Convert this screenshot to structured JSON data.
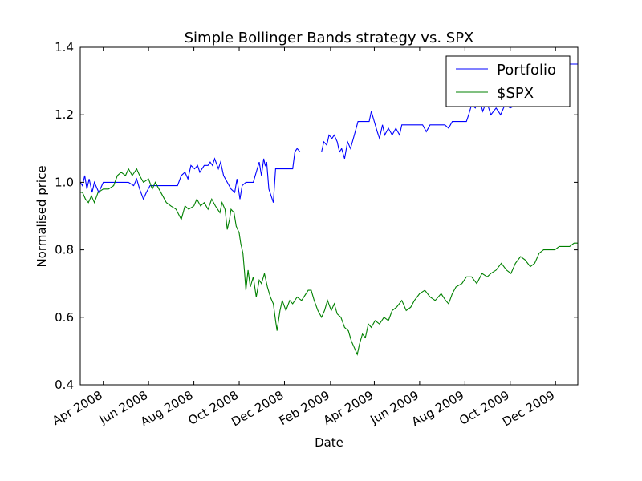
{
  "chart_data": {
    "type": "line",
    "title": "Simple Bollinger Bands strategy vs. SPX",
    "xlabel": "Date",
    "ylabel": "Normalised price",
    "xlim": [
      "2008-03-01",
      "2009-12-31"
    ],
    "ylim": [
      0.4,
      1.4
    ],
    "y_ticks": [
      0.4,
      0.6,
      0.8,
      1.0,
      1.2,
      1.4
    ],
    "y_tick_labels": [
      "0.4",
      "0.6",
      "0.8",
      "1.0",
      "1.2",
      "1.4"
    ],
    "x_ticks": [
      "2008-04-01",
      "2008-06-01",
      "2008-08-01",
      "2008-10-01",
      "2008-12-01",
      "2009-02-01",
      "2009-04-01",
      "2009-06-01",
      "2009-08-01",
      "2009-10-01",
      "2009-12-01"
    ],
    "x_tick_labels": [
      "Apr 2008",
      "Jun 2008",
      "Aug 2008",
      "Oct 2008",
      "Dec 2008",
      "Feb 2009",
      "Apr 2009",
      "Jun 2009",
      "Aug 2009",
      "Oct 2009",
      "Dec 2009"
    ],
    "grid": false,
    "legend_position": "top-right",
    "series": [
      {
        "name": "Portfolio",
        "color": "#0000ff",
        "points": [
          [
            "2008-03-01",
            1.0
          ],
          [
            "2008-03-04",
            0.99
          ],
          [
            "2008-03-07",
            1.02
          ],
          [
            "2008-03-10",
            0.98
          ],
          [
            "2008-03-13",
            1.01
          ],
          [
            "2008-03-17",
            0.97
          ],
          [
            "2008-03-20",
            1.0
          ],
          [
            "2008-03-26",
            0.97
          ],
          [
            "2008-04-01",
            1.0
          ],
          [
            "2008-04-20",
            1.0
          ],
          [
            "2008-05-05",
            1.0
          ],
          [
            "2008-05-12",
            0.99
          ],
          [
            "2008-05-16",
            1.01
          ],
          [
            "2008-05-20",
            0.98
          ],
          [
            "2008-05-25",
            0.95
          ],
          [
            "2008-05-29",
            0.97
          ],
          [
            "2008-06-03",
            0.99
          ],
          [
            "2008-06-15",
            0.99
          ],
          [
            "2008-07-10",
            0.99
          ],
          [
            "2008-07-15",
            1.02
          ],
          [
            "2008-07-20",
            1.03
          ],
          [
            "2008-07-24",
            1.01
          ],
          [
            "2008-07-28",
            1.05
          ],
          [
            "2008-08-02",
            1.04
          ],
          [
            "2008-08-06",
            1.05
          ],
          [
            "2008-08-09",
            1.03
          ],
          [
            "2008-08-15",
            1.05
          ],
          [
            "2008-08-20",
            1.05
          ],
          [
            "2008-08-23",
            1.06
          ],
          [
            "2008-08-26",
            1.05
          ],
          [
            "2008-08-29",
            1.07
          ],
          [
            "2008-09-03",
            1.04
          ],
          [
            "2008-09-06",
            1.06
          ],
          [
            "2008-09-10",
            1.02
          ],
          [
            "2008-09-15",
            1.0
          ],
          [
            "2008-09-20",
            0.98
          ],
          [
            "2008-09-25",
            0.97
          ],
          [
            "2008-09-28",
            1.01
          ],
          [
            "2008-10-02",
            0.95
          ],
          [
            "2008-10-05",
            0.99
          ],
          [
            "2008-10-10",
            1.0
          ],
          [
            "2008-10-20",
            1.0
          ],
          [
            "2008-10-28",
            1.06
          ],
          [
            "2008-10-31",
            1.02
          ],
          [
            "2008-11-03",
            1.07
          ],
          [
            "2008-11-05",
            1.05
          ],
          [
            "2008-11-07",
            1.06
          ],
          [
            "2008-11-10",
            0.98
          ],
          [
            "2008-11-13",
            0.96
          ],
          [
            "2008-11-16",
            0.94
          ],
          [
            "2008-11-19",
            1.04
          ],
          [
            "2008-12-05",
            1.04
          ],
          [
            "2008-12-12",
            1.04
          ],
          [
            "2008-12-15",
            1.09
          ],
          [
            "2008-12-18",
            1.1
          ],
          [
            "2008-12-22",
            1.09
          ],
          [
            "2009-01-10",
            1.09
          ],
          [
            "2009-01-20",
            1.09
          ],
          [
            "2009-01-23",
            1.12
          ],
          [
            "2009-01-27",
            1.11
          ],
          [
            "2009-01-30",
            1.14
          ],
          [
            "2009-02-03",
            1.13
          ],
          [
            "2009-02-06",
            1.14
          ],
          [
            "2009-02-10",
            1.12
          ],
          [
            "2009-02-13",
            1.09
          ],
          [
            "2009-02-16",
            1.1
          ],
          [
            "2009-02-20",
            1.07
          ],
          [
            "2009-02-24",
            1.12
          ],
          [
            "2009-02-28",
            1.1
          ],
          [
            "2009-03-05",
            1.14
          ],
          [
            "2009-03-10",
            1.18
          ],
          [
            "2009-03-20",
            1.18
          ],
          [
            "2009-03-25",
            1.18
          ],
          [
            "2009-03-28",
            1.21
          ],
          [
            "2009-04-01",
            1.18
          ],
          [
            "2009-04-05",
            1.15
          ],
          [
            "2009-04-08",
            1.13
          ],
          [
            "2009-04-12",
            1.17
          ],
          [
            "2009-04-15",
            1.14
          ],
          [
            "2009-04-20",
            1.16
          ],
          [
            "2009-04-25",
            1.14
          ],
          [
            "2009-04-30",
            1.16
          ],
          [
            "2009-05-05",
            1.14
          ],
          [
            "2009-05-08",
            1.17
          ],
          [
            "2009-05-25",
            1.17
          ],
          [
            "2009-06-05",
            1.17
          ],
          [
            "2009-06-10",
            1.15
          ],
          [
            "2009-06-15",
            1.17
          ],
          [
            "2009-07-05",
            1.17
          ],
          [
            "2009-07-10",
            1.16
          ],
          [
            "2009-07-15",
            1.18
          ],
          [
            "2009-07-28",
            1.18
          ],
          [
            "2009-08-03",
            1.18
          ],
          [
            "2009-08-06",
            1.2
          ],
          [
            "2009-08-10",
            1.23
          ],
          [
            "2009-08-15",
            1.22
          ],
          [
            "2009-08-20",
            1.25
          ],
          [
            "2009-08-25",
            1.21
          ],
          [
            "2009-08-30",
            1.24
          ],
          [
            "2009-09-05",
            1.2
          ],
          [
            "2009-09-12",
            1.22
          ],
          [
            "2009-09-18",
            1.2
          ],
          [
            "2009-09-24",
            1.23
          ],
          [
            "2009-10-01",
            1.22
          ],
          [
            "2009-10-10",
            1.23
          ],
          [
            "2009-10-20",
            1.28
          ],
          [
            "2009-11-01",
            1.3
          ],
          [
            "2009-11-15",
            1.32
          ],
          [
            "2009-12-01",
            1.35
          ],
          [
            "2009-12-31",
            1.35
          ]
        ]
      },
      {
        "name": "$SPX",
        "color": "#008000",
        "points": [
          [
            "2008-03-01",
            0.97
          ],
          [
            "2008-03-04",
            0.97
          ],
          [
            "2008-03-08",
            0.95
          ],
          [
            "2008-03-12",
            0.94
          ],
          [
            "2008-03-16",
            0.96
          ],
          [
            "2008-03-20",
            0.94
          ],
          [
            "2008-03-25",
            0.97
          ],
          [
            "2008-04-01",
            0.98
          ],
          [
            "2008-04-08",
            0.98
          ],
          [
            "2008-04-15",
            0.99
          ],
          [
            "2008-04-20",
            1.02
          ],
          [
            "2008-04-25",
            1.03
          ],
          [
            "2008-05-01",
            1.02
          ],
          [
            "2008-05-05",
            1.04
          ],
          [
            "2008-05-10",
            1.02
          ],
          [
            "2008-05-16",
            1.04
          ],
          [
            "2008-05-20",
            1.02
          ],
          [
            "2008-05-25",
            1.0
          ],
          [
            "2008-06-01",
            1.01
          ],
          [
            "2008-06-06",
            0.98
          ],
          [
            "2008-06-10",
            1.0
          ],
          [
            "2008-06-15",
            0.98
          ],
          [
            "2008-06-20",
            0.96
          ],
          [
            "2008-06-25",
            0.94
          ],
          [
            "2008-07-01",
            0.93
          ],
          [
            "2008-07-08",
            0.92
          ],
          [
            "2008-07-15",
            0.89
          ],
          [
            "2008-07-20",
            0.93
          ],
          [
            "2008-07-25",
            0.92
          ],
          [
            "2008-08-01",
            0.93
          ],
          [
            "2008-08-05",
            0.95
          ],
          [
            "2008-08-10",
            0.93
          ],
          [
            "2008-08-15",
            0.94
          ],
          [
            "2008-08-20",
            0.92
          ],
          [
            "2008-08-25",
            0.95
          ],
          [
            "2008-08-30",
            0.93
          ],
          [
            "2008-09-05",
            0.91
          ],
          [
            "2008-09-08",
            0.94
          ],
          [
            "2008-09-12",
            0.92
          ],
          [
            "2008-09-15",
            0.86
          ],
          [
            "2008-09-18",
            0.89
          ],
          [
            "2008-09-20",
            0.92
          ],
          [
            "2008-09-24",
            0.91
          ],
          [
            "2008-09-27",
            0.87
          ],
          [
            "2008-10-01",
            0.85
          ],
          [
            "2008-10-03",
            0.82
          ],
          [
            "2008-10-06",
            0.79
          ],
          [
            "2008-10-08",
            0.74
          ],
          [
            "2008-10-10",
            0.68
          ],
          [
            "2008-10-13",
            0.74
          ],
          [
            "2008-10-16",
            0.69
          ],
          [
            "2008-10-20",
            0.72
          ],
          [
            "2008-10-24",
            0.66
          ],
          [
            "2008-10-28",
            0.71
          ],
          [
            "2008-10-31",
            0.7
          ],
          [
            "2008-11-04",
            0.73
          ],
          [
            "2008-11-08",
            0.69
          ],
          [
            "2008-11-12",
            0.66
          ],
          [
            "2008-11-16",
            0.64
          ],
          [
            "2008-11-19",
            0.59
          ],
          [
            "2008-11-21",
            0.56
          ],
          [
            "2008-11-25",
            0.62
          ],
          [
            "2008-11-28",
            0.65
          ],
          [
            "2008-12-03",
            0.62
          ],
          [
            "2008-12-08",
            0.65
          ],
          [
            "2008-12-12",
            0.64
          ],
          [
            "2008-12-18",
            0.66
          ],
          [
            "2008-12-24",
            0.65
          ],
          [
            "2009-01-02",
            0.68
          ],
          [
            "2009-01-06",
            0.68
          ],
          [
            "2009-01-10",
            0.65
          ],
          [
            "2009-01-15",
            0.62
          ],
          [
            "2009-01-20",
            0.6
          ],
          [
            "2009-01-24",
            0.62
          ],
          [
            "2009-01-28",
            0.65
          ],
          [
            "2009-02-02",
            0.62
          ],
          [
            "2009-02-06",
            0.64
          ],
          [
            "2009-02-10",
            0.61
          ],
          [
            "2009-02-15",
            0.6
          ],
          [
            "2009-02-20",
            0.57
          ],
          [
            "2009-02-25",
            0.56
          ],
          [
            "2009-03-01",
            0.53
          ],
          [
            "2009-03-05",
            0.51
          ],
          [
            "2009-03-09",
            0.49
          ],
          [
            "2009-03-12",
            0.52
          ],
          [
            "2009-03-16",
            0.55
          ],
          [
            "2009-03-20",
            0.54
          ],
          [
            "2009-03-24",
            0.58
          ],
          [
            "2009-03-28",
            0.57
          ],
          [
            "2009-04-02",
            0.59
          ],
          [
            "2009-04-08",
            0.58
          ],
          [
            "2009-04-14",
            0.6
          ],
          [
            "2009-04-20",
            0.59
          ],
          [
            "2009-04-25",
            0.62
          ],
          [
            "2009-05-01",
            0.63
          ],
          [
            "2009-05-08",
            0.65
          ],
          [
            "2009-05-14",
            0.62
          ],
          [
            "2009-05-20",
            0.63
          ],
          [
            "2009-05-25",
            0.65
          ],
          [
            "2009-06-01",
            0.67
          ],
          [
            "2009-06-08",
            0.68
          ],
          [
            "2009-06-15",
            0.66
          ],
          [
            "2009-06-22",
            0.65
          ],
          [
            "2009-06-30",
            0.67
          ],
          [
            "2009-07-06",
            0.65
          ],
          [
            "2009-07-10",
            0.64
          ],
          [
            "2009-07-15",
            0.67
          ],
          [
            "2009-07-20",
            0.69
          ],
          [
            "2009-07-28",
            0.7
          ],
          [
            "2009-08-03",
            0.72
          ],
          [
            "2009-08-10",
            0.72
          ],
          [
            "2009-08-17",
            0.7
          ],
          [
            "2009-08-24",
            0.73
          ],
          [
            "2009-08-31",
            0.72
          ],
          [
            "2009-09-05",
            0.73
          ],
          [
            "2009-09-12",
            0.74
          ],
          [
            "2009-09-19",
            0.76
          ],
          [
            "2009-09-26",
            0.74
          ],
          [
            "2009-10-02",
            0.73
          ],
          [
            "2009-10-08",
            0.76
          ],
          [
            "2009-10-15",
            0.78
          ],
          [
            "2009-10-21",
            0.77
          ],
          [
            "2009-10-28",
            0.75
          ],
          [
            "2009-11-03",
            0.76
          ],
          [
            "2009-11-09",
            0.79
          ],
          [
            "2009-11-15",
            0.8
          ],
          [
            "2009-11-22",
            0.8
          ],
          [
            "2009-11-30",
            0.8
          ],
          [
            "2009-12-06",
            0.81
          ],
          [
            "2009-12-13",
            0.81
          ],
          [
            "2009-12-20",
            0.81
          ],
          [
            "2009-12-26",
            0.82
          ],
          [
            "2009-12-31",
            0.82
          ]
        ]
      }
    ]
  }
}
